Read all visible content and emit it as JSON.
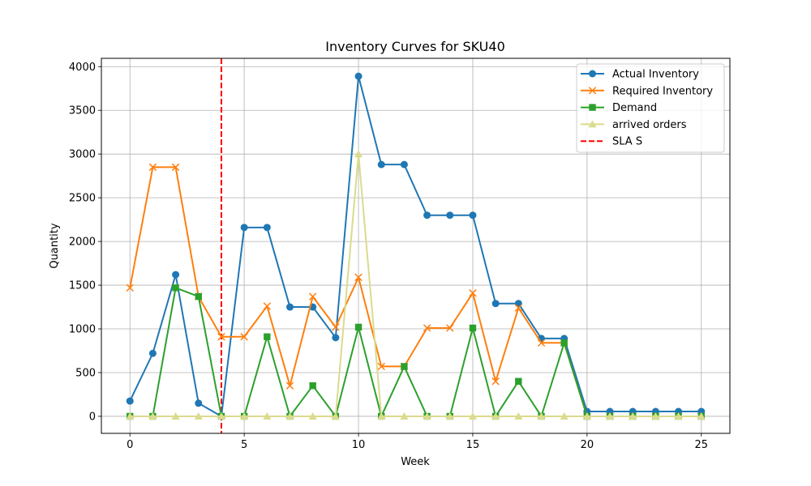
{
  "chart_data": {
    "type": "line",
    "title": "Inventory Curves for SKU40",
    "xlabel": "Week",
    "ylabel": "Quantity",
    "xlim": [
      -1.25,
      26.25
    ],
    "ylim": [
      -195,
      4095
    ],
    "xticks": [
      0,
      5,
      10,
      15,
      20,
      25
    ],
    "yticks": [
      0,
      500,
      1000,
      1500,
      2000,
      2500,
      3000,
      3500,
      4000
    ],
    "grid": true,
    "legend_position": "top-right",
    "x": [
      0,
      1,
      2,
      3,
      4,
      5,
      6,
      7,
      8,
      9,
      10,
      11,
      12,
      13,
      14,
      15,
      16,
      17,
      18,
      19,
      20,
      21,
      22,
      23,
      24,
      25
    ],
    "series": [
      {
        "name": "Actual Inventory",
        "color": "#1f77b4",
        "marker": "circle",
        "values": [
          175,
          720,
          1620,
          150,
          0,
          2160,
          2160,
          1250,
          1250,
          900,
          3890,
          2880,
          2880,
          2300,
          2300,
          2300,
          1290,
          1290,
          890,
          890,
          55,
          55,
          55,
          55,
          55,
          55
        ]
      },
      {
        "name": "Required Inventory",
        "color": "#ff7f0e",
        "marker": "x",
        "values": [
          1470,
          2850,
          2850,
          1370,
          910,
          910,
          1260,
          350,
          1370,
          1020,
          1590,
          570,
          570,
          1010,
          1010,
          1410,
          400,
          1240,
          840,
          840,
          0,
          0,
          0,
          0,
          0,
          0
        ]
      },
      {
        "name": "Demand",
        "color": "#2ca02c",
        "marker": "square",
        "values": [
          0,
          0,
          1470,
          1370,
          0,
          0,
          910,
          0,
          350,
          0,
          1020,
          0,
          570,
          0,
          0,
          1010,
          0,
          400,
          0,
          840,
          0,
          0,
          0,
          0,
          0,
          0
        ]
      },
      {
        "name": "arrived orders",
        "color": "#dbdb8d",
        "marker": "triangle",
        "values": [
          0,
          0,
          0,
          0,
          0,
          0,
          0,
          0,
          0,
          0,
          3000,
          0,
          0,
          0,
          0,
          0,
          0,
          0,
          0,
          0,
          0,
          0,
          0,
          0,
          0,
          0
        ]
      }
    ],
    "vlines": [
      {
        "name": "SLA S",
        "x": 4,
        "color": "#ff0000",
        "style": "dashed"
      }
    ]
  }
}
